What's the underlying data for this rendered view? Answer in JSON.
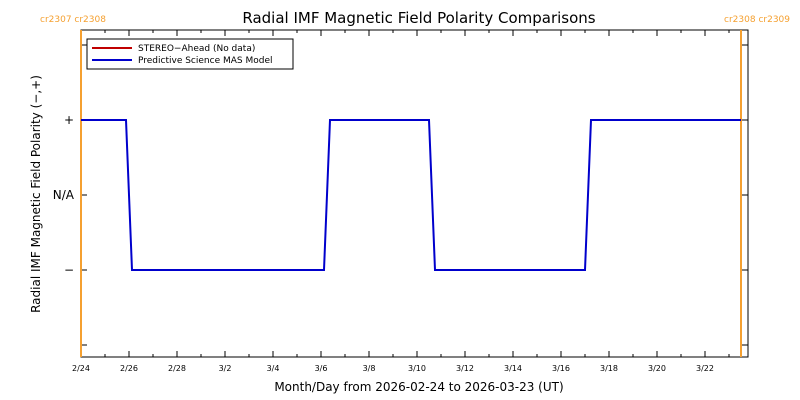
{
  "chart_data": {
    "type": "line",
    "title": "Radial IMF Magnetic Field Polarity Comparisons",
    "xlabel": "Month/Day from 2026-02-24 to 2026-03-23 (UT)",
    "ylabel": "Radial IMF Magnetic Field Polarity (−,+)",
    "x_tick_labels": [
      "2/24",
      "2/26",
      "2/28",
      "3/2",
      "3/4",
      "3/6",
      "3/8",
      "3/10",
      "3/12",
      "3/14",
      "3/16",
      "3/18",
      "3/20",
      "3/22"
    ],
    "y_tick_labels": [
      "+",
      "N/A",
      "−"
    ],
    "xlim": [
      "2026-02-24",
      "2026-03-23"
    ],
    "series": [
      {
        "name": "STEREO−Ahead (No data)",
        "color": "#c00000",
        "values": []
      },
      {
        "name": "Predictive Science MAS Model",
        "color": "#0000cc",
        "x": [
          "2026-02-24",
          "2026-02-25 21:00",
          "2026-02-26 03:00",
          "2026-03-06 03:00",
          "2026-03-06 09:00",
          "2026-03-10 12:00",
          "2026-03-10 18:00",
          "2026-03-17 00:00",
          "2026-03-17 06:00",
          "2026-03-23 12:00"
        ],
        "values": [
          "+",
          "+",
          "−",
          "−",
          "+",
          "+",
          "−",
          "−",
          "+",
          "+"
        ]
      }
    ],
    "carrington_markers": [
      {
        "date": "2026-02-24",
        "label": "cr2307  cr2308",
        "color": "#f5a030",
        "label_side": "left"
      },
      {
        "date": "2026-03-23 12:00",
        "label": "cr2308  cr2309",
        "color": "#f5a030",
        "label_side": "right"
      }
    ],
    "legend_position": "top-left",
    "grid": false
  }
}
